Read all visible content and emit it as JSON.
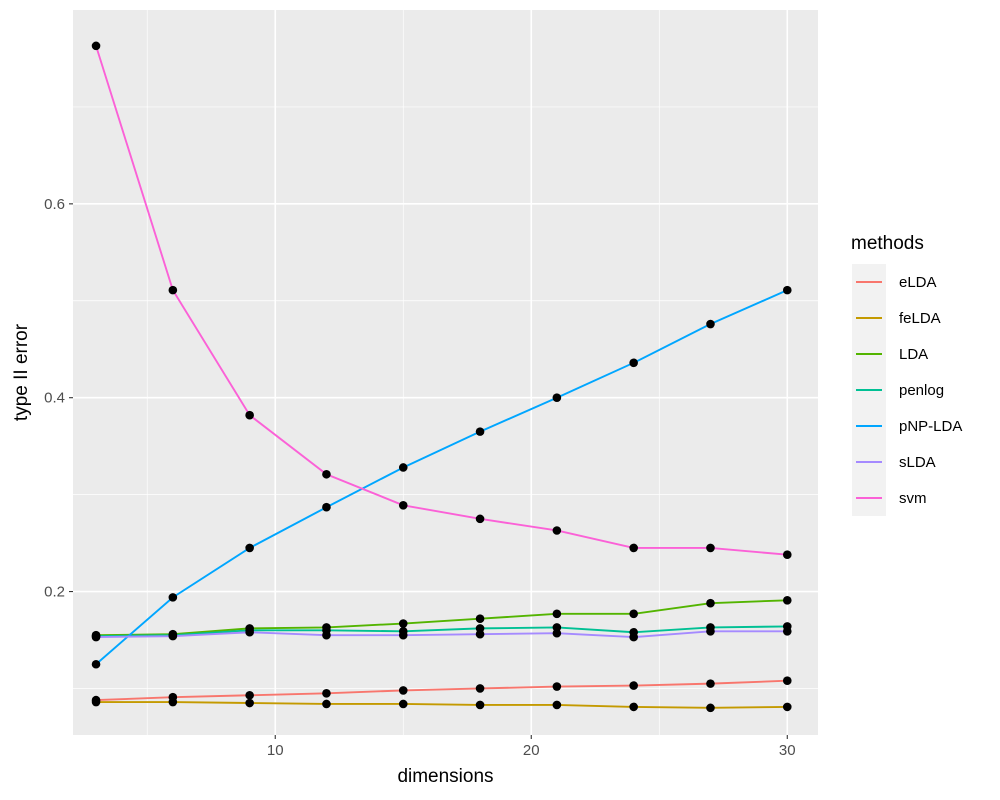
{
  "chart_data": {
    "type": "line",
    "xlabel": "dimensions",
    "ylabel": "type II error",
    "xlim": [
      2.1,
      31.2
    ],
    "ylim": [
      0.052,
      0.8
    ],
    "x_ticks": [
      10,
      20,
      30
    ],
    "y_ticks": [
      0.2,
      0.4,
      0.6
    ],
    "grid": true,
    "legend": {
      "title": "methods",
      "position": "right"
    },
    "x": [
      3,
      6,
      9,
      12,
      15,
      18,
      21,
      24,
      27,
      30
    ],
    "series": [
      {
        "name": "eLDA",
        "color": "#F8766D",
        "values": [
          0.088,
          0.091,
          0.093,
          0.095,
          0.098,
          0.1,
          0.102,
          0.103,
          0.105,
          0.108
        ]
      },
      {
        "name": "feLDA",
        "color": "#C49A00",
        "values": [
          0.086,
          0.086,
          0.085,
          0.084,
          0.084,
          0.083,
          0.083,
          0.081,
          0.08,
          0.081
        ]
      },
      {
        "name": "LDA",
        "color": "#53B400",
        "values": [
          0.155,
          0.156,
          0.162,
          0.163,
          0.167,
          0.172,
          0.177,
          0.177,
          0.188,
          0.191
        ]
      },
      {
        "name": "penlog",
        "color": "#00C094",
        "values": [
          0.154,
          0.155,
          0.16,
          0.16,
          0.159,
          0.162,
          0.163,
          0.158,
          0.163,
          0.164
        ]
      },
      {
        "name": "pNP-LDA",
        "color": "#00A6FF",
        "values": [
          0.125,
          0.194,
          0.245,
          0.287,
          0.328,
          0.365,
          0.4,
          0.436,
          0.476,
          0.511
        ]
      },
      {
        "name": "sLDA",
        "color": "#A58AFF",
        "values": [
          0.153,
          0.154,
          0.158,
          0.155,
          0.155,
          0.156,
          0.157,
          0.153,
          0.159,
          0.159
        ]
      },
      {
        "name": "svm",
        "color": "#FB61D7",
        "values": [
          0.763,
          0.511,
          0.382,
          0.321,
          0.289,
          0.275,
          0.263,
          0.245,
          0.245,
          0.238
        ]
      }
    ]
  }
}
